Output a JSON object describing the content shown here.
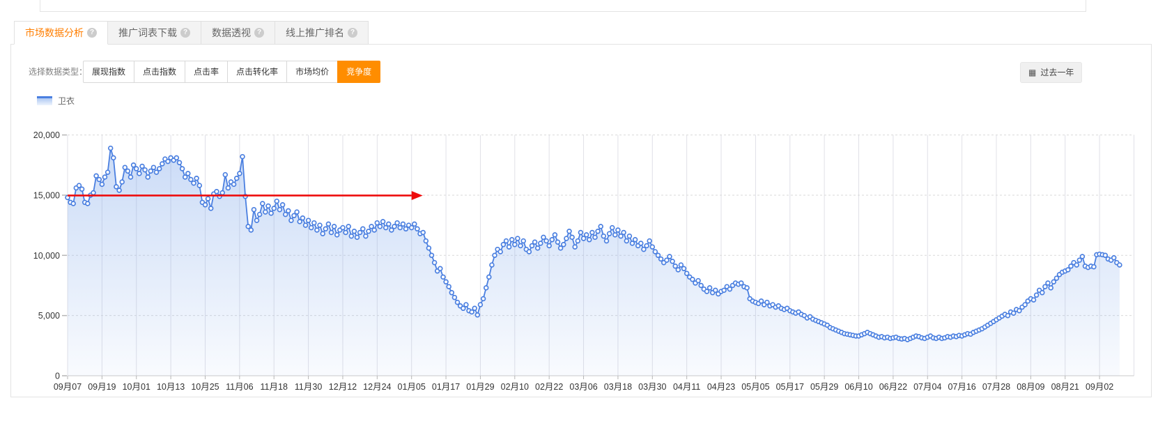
{
  "icons": {
    "help": "?",
    "calendar": "▦"
  },
  "colors": {
    "accent_orange": "#ff8d00",
    "tab_active_text": "#ff7e00",
    "line_blue": "#4a7fe0",
    "annotation_red": "#ee0c0c",
    "grid_vertical": "#e0e0e7",
    "grid_dashed": "#d9d9d9",
    "axis_text": "#333333"
  },
  "tabs": [
    {
      "label": "市场数据分析",
      "active": true
    },
    {
      "label": "推广词表下载",
      "active": false
    },
    {
      "label": "数据透视",
      "active": false
    },
    {
      "label": "线上推广排名",
      "active": false
    }
  ],
  "controls": {
    "label": "选择数据类型：",
    "options": [
      "展现指数",
      "点击指数",
      "点击率",
      "点击转化率",
      "市场均价",
      "竞争度"
    ],
    "active_option": "竞争度",
    "date_range": "过去一年"
  },
  "chart_data": {
    "type": "area",
    "title": "",
    "xlabel": "",
    "ylabel": "",
    "ylim": [
      0,
      20000
    ],
    "grid": true,
    "legend_position": "top-left",
    "y_ticks": [
      0,
      5000,
      10000,
      15000,
      20000
    ],
    "y_tick_labels": [
      "0",
      "5,000",
      "10,000",
      "15,000",
      "20,000"
    ],
    "x_tick_labels": [
      "09月07",
      "09月19",
      "10月01",
      "10月13",
      "10月25",
      "11月06",
      "11月18",
      "11月30",
      "12月12",
      "12月24",
      "01月05",
      "01月17",
      "01月29",
      "02月10",
      "02月22",
      "03月06",
      "03月18",
      "03月30",
      "04月11",
      "04月23",
      "05月05",
      "05月17",
      "05月29",
      "06月10",
      "06月22",
      "07月04",
      "07月16",
      "07月28",
      "08月09",
      "08月21",
      "09月02"
    ],
    "days_per_tick": 12,
    "annotation": {
      "type": "arrow",
      "y_value": 15000,
      "from_index": 0,
      "to_index": 120,
      "color": "#ee0c0c"
    },
    "series": [
      {
        "name": "卫衣",
        "values": [
          14800,
          14400,
          14300,
          15600,
          15800,
          15500,
          14400,
          14300,
          15000,
          15200,
          16600,
          16300,
          15900,
          16500,
          16900,
          18900,
          18100,
          15700,
          15400,
          16100,
          17300,
          17000,
          16500,
          17500,
          17200,
          16800,
          17400,
          17100,
          16500,
          17000,
          17300,
          16900,
          17200,
          17600,
          18000,
          17800,
          18100,
          17900,
          18100,
          17700,
          17200,
          16500,
          16800,
          16300,
          16000,
          16400,
          15800,
          14400,
          14200,
          14700,
          13900,
          15100,
          15300,
          14900,
          15200,
          16700,
          15600,
          16100,
          15900,
          16400,
          16800,
          18200,
          14900,
          12400,
          12100,
          13800,
          12900,
          13400,
          14300,
          13600,
          14100,
          13500,
          13900,
          14500,
          13800,
          14200,
          13400,
          13700,
          12900,
          13300,
          13600,
          12800,
          13100,
          12500,
          12900,
          12300,
          12700,
          12100,
          12500,
          11800,
          12200,
          12600,
          11900,
          12400,
          11700,
          12100,
          12300,
          11900,
          12400,
          11600,
          12000,
          11500,
          11900,
          12200,
          11600,
          12000,
          12400,
          12100,
          12700,
          12400,
          12800,
          12300,
          12600,
          12100,
          12400,
          12700,
          12300,
          12600,
          12200,
          12500,
          12300,
          12600,
          12200,
          11800,
          11900,
          11200,
          10600,
          10000,
          9400,
          8700,
          8900,
          8200,
          7800,
          7400,
          6900,
          6500,
          6100,
          5800,
          5600,
          5900,
          5400,
          5300,
          5600,
          5050,
          5900,
          6400,
          7300,
          8200,
          9200,
          10000,
          10500,
          10300,
          10900,
          11200,
          10700,
          11300,
          10900,
          11400,
          10800,
          11200,
          10500,
          10300,
          10800,
          11100,
          10600,
          11000,
          11500,
          11200,
          10800,
          11300,
          11700,
          11100,
          10600,
          10900,
          11400,
          12000,
          11500,
          10700,
          11200,
          11900,
          11400,
          11700,
          11300,
          11900,
          11500,
          12000,
          12400,
          11600,
          11200,
          11800,
          12300,
          11700,
          12100,
          11600,
          11900,
          11200,
          11600,
          11000,
          11300,
          10800,
          11000,
          10500,
          10800,
          11200,
          10700,
          10300,
          10000,
          9700,
          9400,
          9600,
          9900,
          9500,
          9100,
          8800,
          9200,
          8900,
          8500,
          8200,
          8000,
          7700,
          7900,
          7500,
          7200,
          7000,
          7300,
          6900,
          7100,
          6800,
          7000,
          7100,
          7400,
          7200,
          7500,
          7700,
          7600,
          7700,
          7400,
          7300,
          6400,
          6200,
          6100,
          6000,
          6200,
          5900,
          6100,
          5800,
          5900,
          5700,
          5800,
          5600,
          5500,
          5600,
          5400,
          5300,
          5200,
          5300,
          5100,
          5000,
          4800,
          4900,
          4700,
          4600,
          4500,
          4400,
          4300,
          4200,
          4000,
          3900,
          3800,
          3700,
          3600,
          3500,
          3450,
          3400,
          3350,
          3300,
          3300,
          3400,
          3500,
          3600,
          3500,
          3400,
          3300,
          3200,
          3250,
          3150,
          3200,
          3100,
          3150,
          3200,
          3100,
          3050,
          3100,
          3000,
          3100,
          3200,
          3300,
          3250,
          3150,
          3100,
          3200,
          3300,
          3150,
          3100,
          3200,
          3100,
          3150,
          3250,
          3200,
          3300,
          3250,
          3350,
          3300,
          3400,
          3500,
          3450,
          3600,
          3700,
          3800,
          3900,
          4050,
          4200,
          4350,
          4500,
          4650,
          4800,
          4950,
          5100,
          5000,
          5300,
          5200,
          5500,
          5400,
          5700,
          5900,
          6200,
          6400,
          6300,
          6700,
          7100,
          6900,
          7400,
          7700,
          7300,
          7800,
          8100,
          8400,
          8600,
          8700,
          8800,
          9100,
          9400,
          9200,
          9600,
          9900,
          9100,
          9000,
          9100,
          9050,
          10050,
          10100,
          10050,
          10000,
          9700,
          9600,
          9800,
          9400,
          9200
        ]
      }
    ]
  }
}
